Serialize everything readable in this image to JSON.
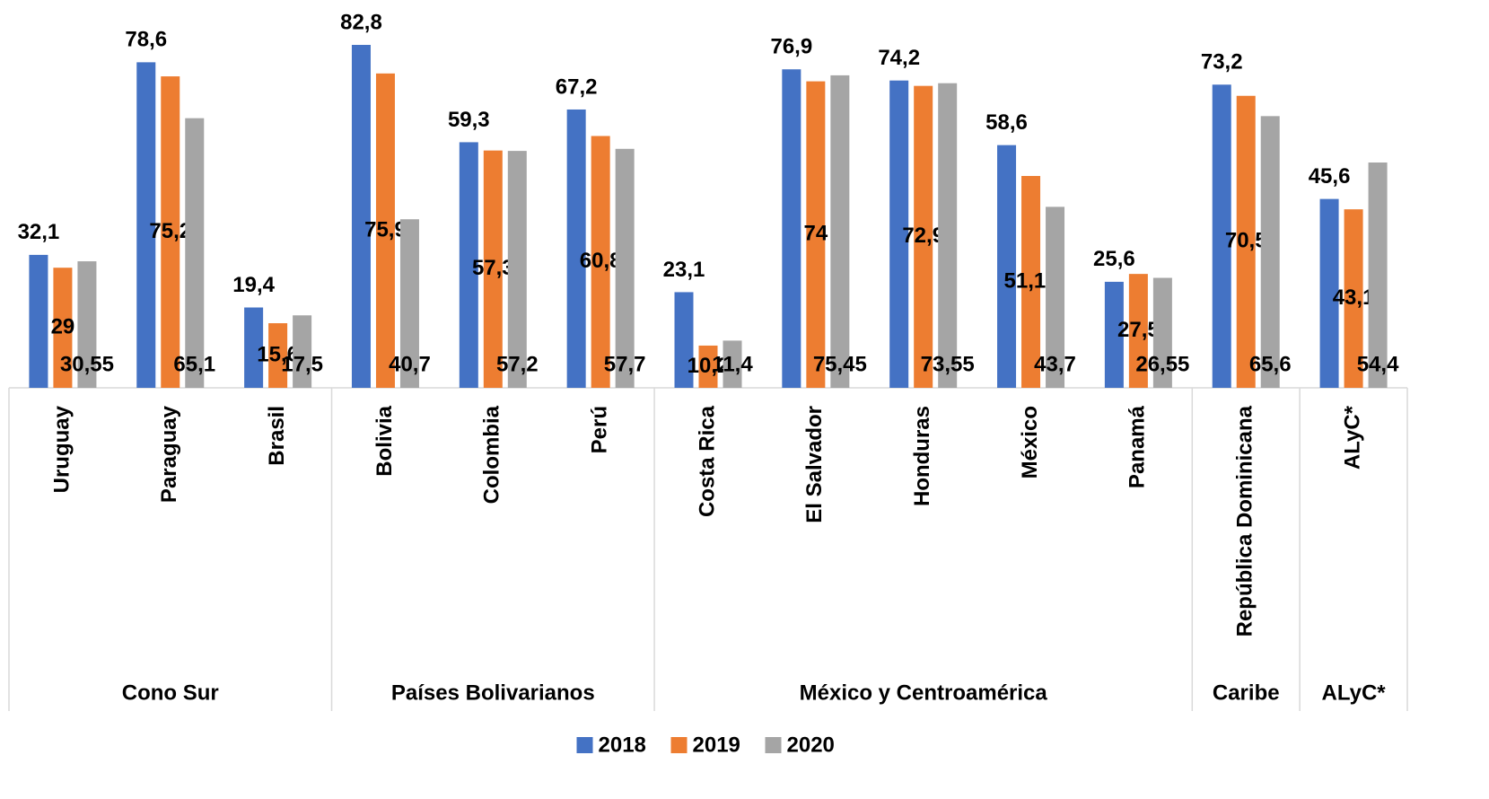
{
  "chart_data": {
    "type": "bar",
    "categories": [
      "Uruguay",
      "Paraguay",
      "Brasil",
      "Bolivia",
      "Colombia",
      "Perú",
      "Costa Rica",
      "El Salvador",
      "Honduras",
      "México",
      "Panamá",
      "República Dominicana",
      "ALyC*"
    ],
    "groups": [
      {
        "name": "Cono Sur",
        "size": 3
      },
      {
        "name": "Países Bolivarianos",
        "size": 3
      },
      {
        "name": "México y Centroamérica",
        "size": 5
      },
      {
        "name": "Caribe",
        "size": 1
      },
      {
        "name": "ALyC*",
        "size": 1
      }
    ],
    "series": [
      {
        "name": "2018",
        "color": "#4472c4",
        "label_position": "outside-end",
        "values": [
          32.1,
          78.6,
          19.4,
          82.8,
          59.3,
          67.2,
          23.1,
          76.9,
          74.2,
          58.6,
          25.6,
          73.2,
          45.6
        ],
        "value_labels": [
          "32,1",
          "78,6",
          "19,4",
          "82,8",
          "59,3",
          "67,2",
          "23,1",
          "76,9",
          "74,2",
          "58,6",
          "25,6",
          "73,2",
          "45,6"
        ]
      },
      {
        "name": "2019",
        "color": "#ed7d31",
        "label_position": "center",
        "values": [
          29,
          75.2,
          15.6,
          75.9,
          57.3,
          60.8,
          10.2,
          74,
          72.9,
          51.15,
          27.5,
          70.5,
          43.1
        ],
        "value_labels": [
          "29",
          "75,2",
          "15,6",
          "75,9",
          "57,3",
          "60,8",
          "10,2",
          "74",
          "72,9",
          "51,15",
          "27,5",
          "70,5",
          "43,1"
        ]
      },
      {
        "name": "2020",
        "color": "#a5a5a5",
        "label_position": "inside-base",
        "values": [
          30.55,
          65.1,
          17.5,
          40.7,
          57.2,
          57.7,
          11.4,
          75.45,
          73.55,
          43.7,
          26.55,
          65.6,
          54.4
        ],
        "value_labels": [
          "30,55",
          "65,1",
          "17,5",
          "40,7",
          "57,2",
          "57,7",
          "11,4",
          "75,45",
          "73,55",
          "43,7",
          "26,55",
          "65,6",
          "54,4"
        ]
      }
    ],
    "legend": "bottom"
  }
}
